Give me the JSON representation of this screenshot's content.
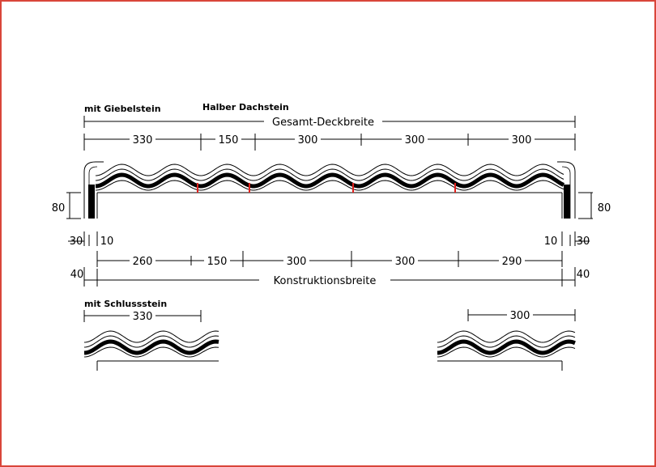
{
  "labels": {
    "mit_giebelstein": "mit Giebelstein",
    "halber_dachstein": "Halber Dachstein",
    "gesamt_deckbreite": "Gesamt-Deckbreite",
    "konstruktionsbreite": "Konstruktionsbreite",
    "mit_schlussstein": "mit Schlussstein"
  },
  "top_dims": [
    "330",
    "150",
    "300",
    "300",
    "300"
  ],
  "bottom_dims": [
    "260",
    "150",
    "300",
    "300",
    "290"
  ],
  "side": {
    "height_left": "80",
    "height_right": "80",
    "left_outer": "30",
    "left_inner": "10",
    "right_inner": "10",
    "right_outer": "30",
    "left_40": "40",
    "right_40": "40"
  },
  "detail_left_dim": "330",
  "detail_right_dim": "300",
  "colors": {
    "frame": "#d9453a",
    "accent": "#e0201c",
    "ink": "#000000"
  }
}
